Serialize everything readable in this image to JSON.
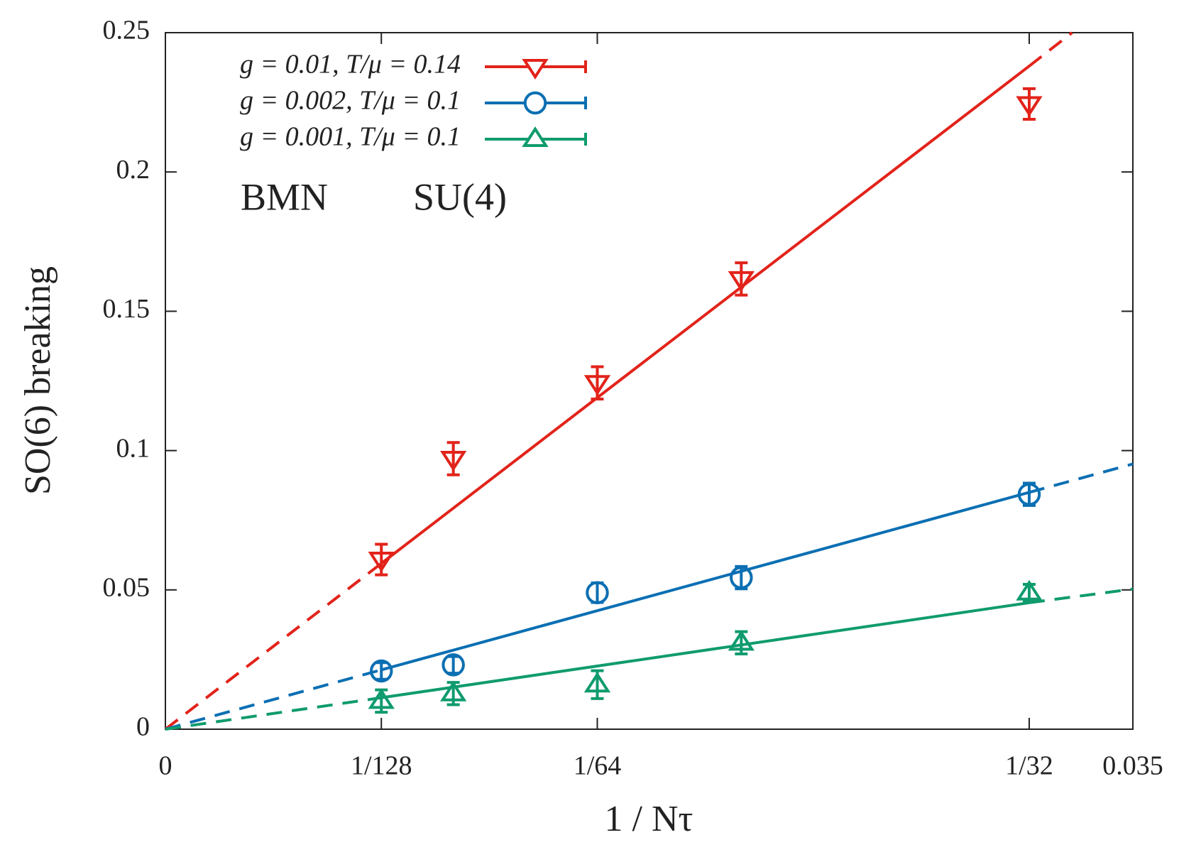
{
  "chart_data": {
    "type": "scatter",
    "xlabel": "1 / Nτ",
    "ylabel": "SO(6)  breaking",
    "annotations": [
      "BMN",
      "SU(4)"
    ],
    "xlim": [
      0,
      0.035
    ],
    "ylim": [
      0,
      0.25
    ],
    "xticks": [
      0,
      {
        "value": 0.0078125,
        "label": "1/128"
      },
      {
        "value": 0.015625,
        "label": "1/64"
      },
      {
        "value": 0.03125,
        "label": "1/32"
      },
      0.035
    ],
    "yticks": [
      0,
      0.05,
      0.1,
      0.15,
      0.2,
      0.25
    ],
    "legend": "upper left",
    "series": [
      {
        "name": "g = 0.01, T/μ = 0.14",
        "color": "#e2231a",
        "marker": "triangle-down",
        "x": [
          0.0078125,
          0.0104167,
          0.015625,
          0.0208333,
          0.03125
        ],
        "values": [
          0.0609,
          0.0971,
          0.1243,
          0.1616,
          0.2244
        ],
        "errors": [
          0.0055,
          0.0058,
          0.0058,
          0.0058,
          0.0055
        ],
        "fit": {
          "x": [
            0,
            0.0078125,
            0.03125,
            0.0328
          ],
          "values": [
            0,
            0.0595,
            0.238,
            0.25
          ]
        }
      },
      {
        "name": "g = 0.002, T/μ = 0.1",
        "color": "#0b6fb3",
        "marker": "circle",
        "x": [
          0.0078125,
          0.0104167,
          0.015625,
          0.0208333,
          0.03125
        ],
        "values": [
          0.0209,
          0.0231,
          0.049,
          0.0544,
          0.0843
        ],
        "errors": [
          0.003,
          0.003,
          0.0035,
          0.004,
          0.004
        ],
        "fit": {
          "x": [
            0,
            0.0078125,
            0.03125,
            0.035
          ],
          "values": [
            0,
            0.0213,
            0.085,
            0.0952
          ]
        }
      },
      {
        "name": "g = 0.001, T/μ = 0.1",
        "color": "#0f9b6e",
        "marker": "triangle-up",
        "x": [
          0.0078125,
          0.0104167,
          0.015625,
          0.0208333,
          0.03125
        ],
        "values": [
          0.0101,
          0.0128,
          0.016,
          0.031,
          0.049
        ],
        "errors": [
          0.004,
          0.004,
          0.005,
          0.004,
          0.003
        ],
        "fit": {
          "x": [
            0,
            0.0078125,
            0.03125,
            0.035
          ],
          "values": [
            0,
            0.0113,
            0.0454,
            0.0503
          ]
        }
      }
    ]
  }
}
